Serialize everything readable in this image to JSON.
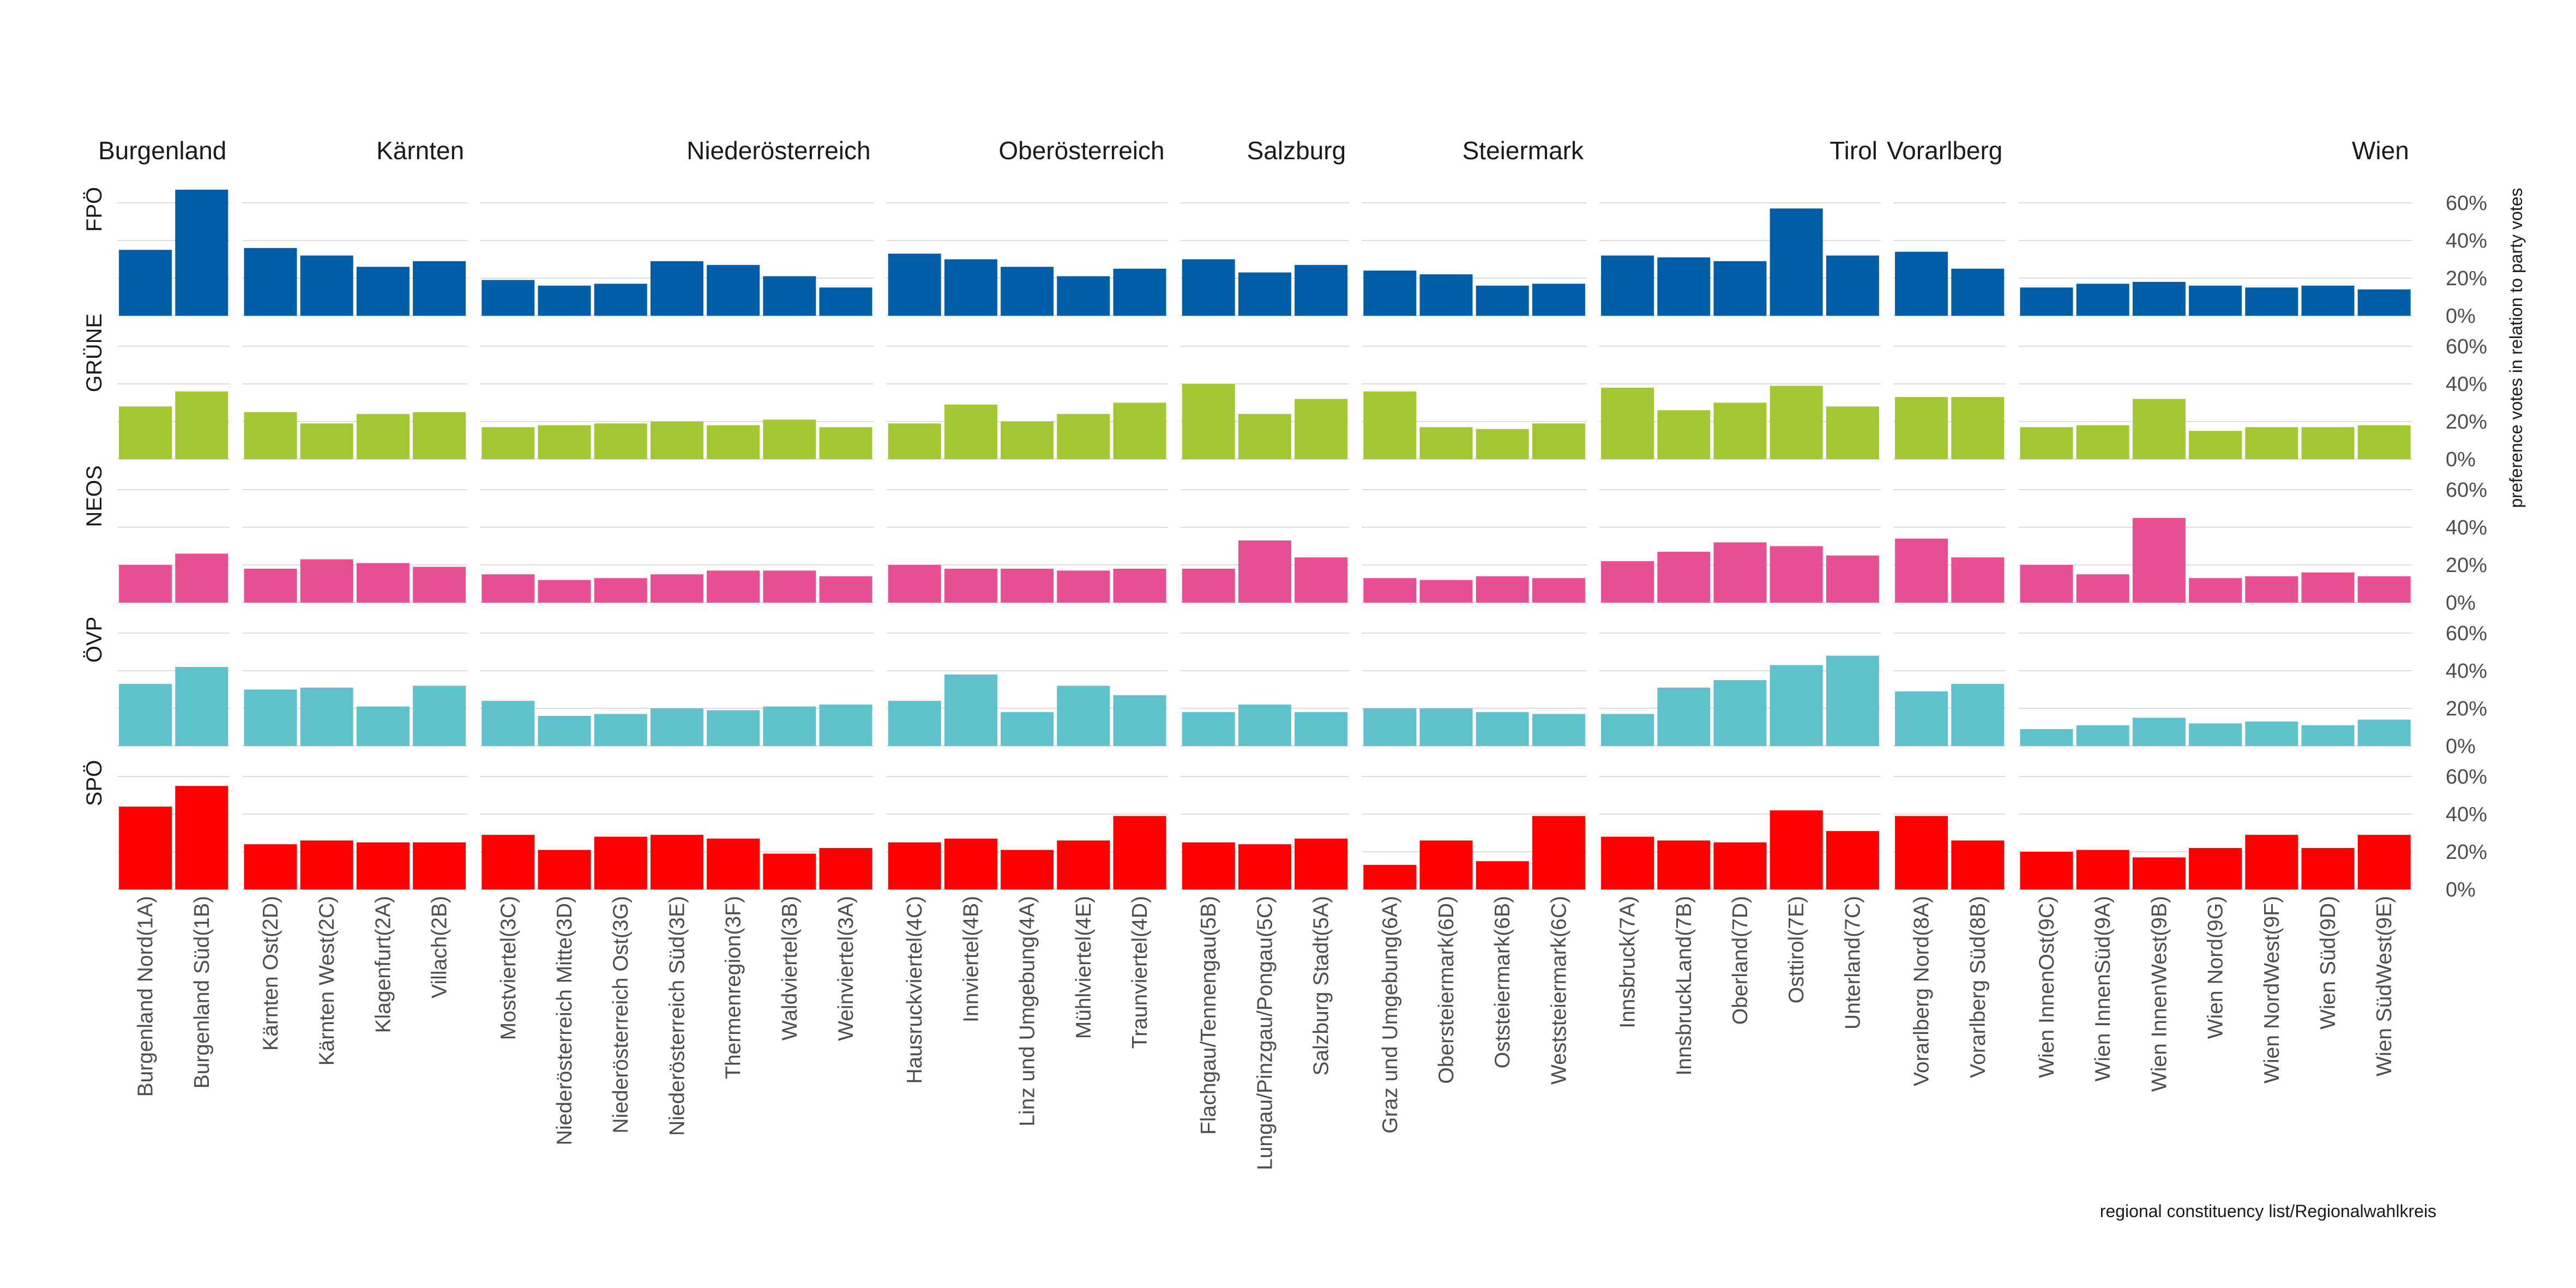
{
  "chart_data": {
    "type": "bar",
    "facet_layout": "rows by party, columns by state",
    "ylabel": "preference votes in relation to party votes",
    "xlabel": "regional constituency list/Regionalwahlkreis",
    "ylim": [
      0,
      0.7
    ],
    "yticks": [
      0,
      0.2,
      0.4,
      0.6
    ],
    "ytick_labels": [
      "0%",
      "20%",
      "40%",
      "60%"
    ],
    "y_axis_position": "right",
    "grid": true,
    "legend": "none",
    "states": [
      {
        "name": "Burgenland",
        "label": "Burgenland",
        "categories": [
          "Burgenland Nord(1A)",
          "Burgenland Süd(1B)"
        ]
      },
      {
        "name": "Kärnten",
        "label": "Kärnten",
        "categories": [
          "Kärnten Ost(2D)",
          "Kärnten West(2C)",
          "Klagenfurt(2A)",
          "Villach(2B)"
        ]
      },
      {
        "name": "Niederösterreich",
        "label": "Niederösterreich",
        "categories": [
          "Mostviertel(3C)",
          "Niederösterreich Mitte(3D)",
          "Niederösterreich Ost(3G)",
          "Niederösterreich Süd(3E)",
          "Thermenregion(3F)",
          "Waldviertel(3B)",
          "Weinviertel(3A)"
        ]
      },
      {
        "name": "Oberösterreich",
        "label": "Oberösterreich",
        "categories": [
          "Hausruckviertel(4C)",
          "Innviertel(4B)",
          "Linz und Umgebung(4A)",
          "Mühlviertel(4E)",
          "Traunviertel(4D)"
        ]
      },
      {
        "name": "Salzburg",
        "label": "Salzburg",
        "categories": [
          "Flachgau/Tennengau(5B)",
          "Lungau/Pinzgau/Pongau(5C)",
          "Salzburg Stadt(5A)"
        ]
      },
      {
        "name": "Steiermark",
        "label": "Steiermark",
        "categories": [
          "Graz und Umgebung(6A)",
          "Obersteiermark(6D)",
          "Oststeiermark(6B)",
          "Weststeiermark(6C)"
        ]
      },
      {
        "name": "Tirol",
        "label": "Tirol",
        "categories": [
          "Innsbruck(7A)",
          "InnsbruckLand(7B)",
          "Oberland(7D)",
          "Osttirol(7E)",
          "Unterland(7C)"
        ]
      },
      {
        "name": "Vorarlberg",
        "label": "Vorarlberg",
        "categories": [
          "Vorarlberg Nord(8A)",
          "Vorarlberg Süd(8B)"
        ]
      },
      {
        "name": "Wien",
        "label": "Wien",
        "categories": [
          "Wien InnenOst(9C)",
          "Wien InnenSüd(9A)",
          "Wien InnenWest(9B)",
          "Wien Nord(9G)",
          "Wien NordWest(9F)",
          "Wien Süd(9D)",
          "Wien SüdWest(9E)"
        ]
      }
    ],
    "series": [
      {
        "name": "FPÖ",
        "color": "#005ea8",
        "values": [
          0.35,
          0.67,
          0.36,
          0.32,
          0.26,
          0.29,
          0.19,
          0.16,
          0.17,
          0.29,
          0.27,
          0.21,
          0.15,
          0.33,
          0.3,
          0.26,
          0.21,
          0.25,
          0.3,
          0.23,
          0.27,
          0.24,
          0.22,
          0.16,
          0.17,
          0.32,
          0.31,
          0.29,
          0.57,
          0.32,
          0.34,
          0.25,
          0.15,
          0.17,
          0.18,
          0.16,
          0.15,
          0.16,
          0.14
        ]
      },
      {
        "name": "GRÜNE",
        "color": "#a3c633",
        "values": [
          0.28,
          0.36,
          0.25,
          0.19,
          0.24,
          0.25,
          0.17,
          0.18,
          0.19,
          0.2,
          0.18,
          0.21,
          0.17,
          0.19,
          0.29,
          0.2,
          0.24,
          0.3,
          0.4,
          0.24,
          0.32,
          0.36,
          0.17,
          0.16,
          0.19,
          0.38,
          0.26,
          0.3,
          0.39,
          0.28,
          0.33,
          0.33,
          0.17,
          0.18,
          0.32,
          0.15,
          0.17,
          0.17,
          0.18
        ]
      },
      {
        "name": "NEOS",
        "color": "#e84f93",
        "values": [
          0.2,
          0.26,
          0.18,
          0.23,
          0.21,
          0.19,
          0.15,
          0.12,
          0.13,
          0.15,
          0.17,
          0.17,
          0.14,
          0.2,
          0.18,
          0.18,
          0.17,
          0.18,
          0.18,
          0.33,
          0.24,
          0.13,
          0.12,
          0.14,
          0.13,
          0.22,
          0.27,
          0.32,
          0.3,
          0.25,
          0.34,
          0.24,
          0.2,
          0.15,
          0.45,
          0.13,
          0.14,
          0.16,
          0.14
        ]
      },
      {
        "name": "ÖVP",
        "color": "#5fc1cb",
        "values": [
          0.33,
          0.42,
          0.3,
          0.31,
          0.21,
          0.32,
          0.24,
          0.16,
          0.17,
          0.2,
          0.19,
          0.21,
          0.22,
          0.24,
          0.38,
          0.18,
          0.32,
          0.27,
          0.18,
          0.22,
          0.18,
          0.2,
          0.2,
          0.18,
          0.17,
          0.17,
          0.31,
          0.35,
          0.43,
          0.48,
          0.29,
          0.33,
          0.09,
          0.11,
          0.15,
          0.12,
          0.13,
          0.11,
          0.14
        ]
      },
      {
        "name": "SPÖ",
        "color": "#ff0000",
        "values": [
          0.44,
          0.55,
          0.24,
          0.26,
          0.25,
          0.25,
          0.29,
          0.21,
          0.28,
          0.29,
          0.27,
          0.19,
          0.22,
          0.25,
          0.27,
          0.21,
          0.26,
          0.39,
          0.25,
          0.24,
          0.27,
          0.13,
          0.26,
          0.15,
          0.39,
          0.28,
          0.26,
          0.25,
          0.42,
          0.31,
          0.39,
          0.26,
          0.2,
          0.21,
          0.17,
          0.22,
          0.29,
          0.22,
          0.29
        ]
      }
    ]
  }
}
